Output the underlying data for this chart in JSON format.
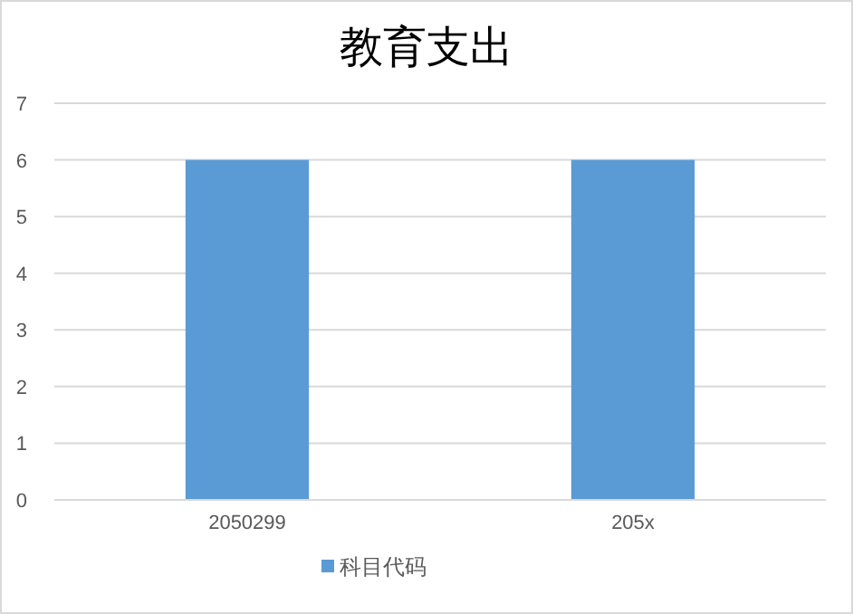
{
  "chart_data": {
    "type": "bar",
    "title": "教育支出",
    "categories": [
      "2050299",
      "205x"
    ],
    "series": [
      {
        "name": "科目代码",
        "color": "#5b9bd5",
        "values": [
          6,
          6
        ]
      }
    ],
    "ylim": [
      0,
      7
    ],
    "yticks": [
      0,
      1,
      2,
      3,
      4,
      5,
      6,
      7
    ],
    "grid": "y",
    "legend": "bottom"
  }
}
